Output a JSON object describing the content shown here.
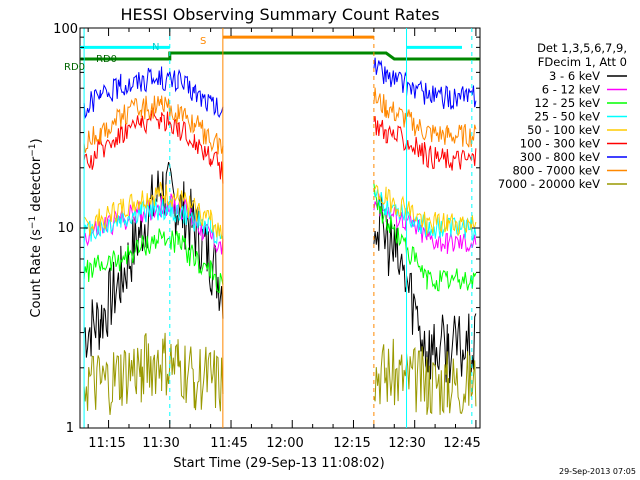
{
  "chart_data": {
    "type": "line",
    "title": "HESSI Observing Summary Count Rates",
    "xlabel": "Start Time (29-Sep-13 11:08:02)",
    "ylabel": "Count Rate (s⁻¹ detector⁻¹)",
    "ylabel_parts": {
      "base": "Count Rate (s",
      "exp1": "−1",
      "mid": " detector",
      "exp2": "−1",
      "end": ")"
    },
    "yscale": "log",
    "ylim": [
      1,
      100
    ],
    "xlim": [
      "11:08",
      "12:46"
    ],
    "x_ticks": [
      "11:15",
      "11:30",
      "11:45",
      "12:00",
      "12:15",
      "12:30",
      "12:45"
    ],
    "y_ticks": [
      "1",
      "10",
      "100"
    ],
    "timestamp": "29-Sep-2013 07:05",
    "legend_header": [
      "Det 1,3,5,6,7,9,",
      "FDecim 1, Att 0"
    ],
    "legend_placement": "right",
    "grid": false,
    "annotations": {
      "rd0_upper": "RD0",
      "rd0_left": "RD0",
      "n_marker": "N",
      "s_marker": "S"
    },
    "x": [
      "11:09",
      "11:13",
      "11:18",
      "11:23",
      "11:28",
      "11:32",
      "11:36",
      "11:40",
      "11:43",
      "12:20",
      "12:23",
      "12:28",
      "12:33",
      "12:38",
      "12:45"
    ],
    "series": [
      {
        "name": "3 - 6 keV",
        "color": "#000000",
        "values": [
          3.0,
          3.5,
          5.5,
          10,
          16,
          13,
          10,
          7,
          5,
          11,
          9,
          5.5,
          2.5,
          2.5,
          2.5
        ]
      },
      {
        "name": "6 - 12 keV",
        "color": "#ff00ff",
        "values": [
          9,
          10,
          11,
          12,
          13,
          13,
          11,
          9,
          8,
          14,
          12,
          11,
          9,
          8.5,
          8.5
        ]
      },
      {
        "name": "12 - 25 keV",
        "color": "#00ff00",
        "values": [
          6,
          6.5,
          7,
          8,
          9,
          8.5,
          7,
          6,
          5,
          15,
          11,
          8,
          5.5,
          5.5,
          5.5
        ]
      },
      {
        "name": "25 - 50 keV",
        "color": "#00ffff",
        "values": [
          9.5,
          10,
          11,
          12,
          12.5,
          12,
          11,
          10,
          9,
          14,
          13,
          12,
          10,
          10,
          10
        ]
      },
      {
        "name": "50 - 100 keV",
        "color": "#ffcc00",
        "values": [
          10,
          11,
          12.5,
          14,
          15,
          14,
          12.5,
          11,
          9.5,
          15,
          14,
          12.5,
          10.5,
          10.5,
          10.5
        ]
      },
      {
        "name": "100 - 300 keV",
        "color": "#ff0000",
        "values": [
          20,
          25,
          30,
          34,
          35,
          32,
          27,
          23,
          19,
          34,
          30,
          27,
          23,
          22,
          22
        ]
      },
      {
        "name": "300 - 800 keV",
        "color": "#0000ff",
        "values": [
          40,
          45,
          52,
          55,
          56,
          54,
          48,
          42,
          37,
          65,
          58,
          52,
          46,
          45,
          45
        ]
      },
      {
        "name": "800 - 7000 keV",
        "color": "#ff8800",
        "values": [
          26,
          30,
          36,
          40,
          40,
          38,
          33,
          28,
          25,
          45,
          40,
          35,
          30,
          29,
          29
        ]
      },
      {
        "name": "7000 - 20000 keV",
        "color": "#999900",
        "values": [
          1.7,
          1.6,
          1.8,
          2.0,
          2.1,
          2.0,
          1.8,
          1.7,
          1.6,
          2.0,
          1.9,
          1.8,
          1.7,
          1.7,
          1.7
        ]
      }
    ]
  }
}
